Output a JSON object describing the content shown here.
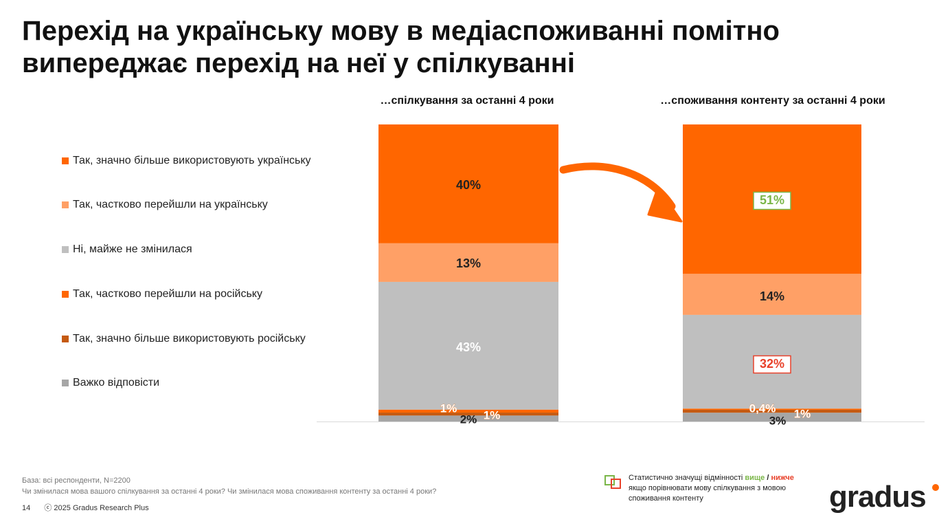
{
  "title": "Перехід на українську мову в медіаспоживанні помітно випереджає перехід на неї у спілкуванні",
  "columns": [
    "…спілкування за останні 4 роки",
    "…споживання контенту за останні 4 роки"
  ],
  "legend": [
    {
      "label": "Так, значно більше використовують українську",
      "color": "#ff6600"
    },
    {
      "label": "Так, частково перейшли на українську",
      "color": "#ffa066"
    },
    {
      "label": "Ні, майже не змінилася",
      "color": "#bfbfbf"
    },
    {
      "label": "Так, частково перейшли на російську",
      "color": "#ff6600"
    },
    {
      "label": "Так, значно більше використовують російську",
      "color": "#c55a11"
    },
    {
      "label": "Важко відповісти",
      "color": "#a6a6a6"
    }
  ],
  "chart_data": {
    "type": "bar",
    "stacked": true,
    "orientation": "vertical",
    "categories": [
      "…спілкування за останні 4 роки",
      "…споживання контенту за останні 4 роки"
    ],
    "series": [
      {
        "name": "Так, значно більше використовують українську",
        "values": [
          40,
          51
        ],
        "labels": [
          "40%",
          "51%"
        ],
        "color": "#ff6600"
      },
      {
        "name": "Так, частково перейшли на українську",
        "values": [
          13,
          14
        ],
        "labels": [
          "13%",
          "14%"
        ],
        "color": "#ffa066"
      },
      {
        "name": "Ні, майже не змінилася",
        "values": [
          43,
          32
        ],
        "labels": [
          "43%",
          "32%"
        ],
        "color": "#bfbfbf"
      },
      {
        "name": "Так, частково перейшли на російську",
        "values": [
          1,
          0.4
        ],
        "labels": [
          "1%",
          "0,4%"
        ],
        "color": "#ff6600"
      },
      {
        "name": "Так, значно більше використовують російську",
        "values": [
          1,
          1
        ],
        "labels": [
          "1%",
          "1%"
        ],
        "color": "#c55a11"
      },
      {
        "name": "Важко відповісти",
        "values": [
          2,
          3
        ],
        "labels": [
          "2%",
          "3%"
        ],
        "color": "#a6a6a6"
      }
    ],
    "highlights": [
      {
        "category": 1,
        "series": 0,
        "direction": "вище",
        "color": "#7ab648"
      },
      {
        "category": 1,
        "series": 2,
        "direction": "нижче",
        "color": "#e8412a"
      }
    ],
    "arrow_color": "#ff6600"
  },
  "footer": {
    "base": "База: всі респонденти, N=2200",
    "question": "Чи змінилася мова вашого спілкування за останні 4 роки? Чи змінилася мова споживання контенту за останні 4 роки?",
    "page_number": "14",
    "copyright": "ⓒ 2025 Gradus Research Plus"
  },
  "stat_note": {
    "prefix": "Статистично значущі відмінності ",
    "higher": "вище",
    "separator": " / ",
    "lower": "нижче",
    "suffix": " якщо порівнювати мову спілкування з мовою споживання контенту",
    "higher_color": "#7ab648",
    "lower_color": "#e8412a"
  },
  "logo": "gradus"
}
